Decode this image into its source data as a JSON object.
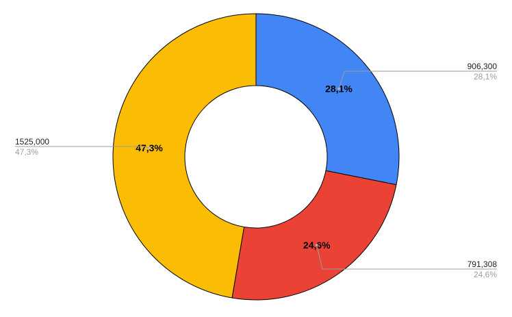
{
  "chart_data": {
    "type": "pie",
    "donut": true,
    "slices": [
      {
        "value": 906300,
        "value_label": "906,300",
        "percent_label": "28,1%",
        "color": "#4285F4"
      },
      {
        "value": 791308,
        "value_label": "791,308",
        "percent_label": "24,6%",
        "color": "#EA4335"
      },
      {
        "value": 1525000,
        "value_label": "1525,000",
        "percent_label": "47,3%",
        "color": "#FBBC04"
      }
    ]
  }
}
